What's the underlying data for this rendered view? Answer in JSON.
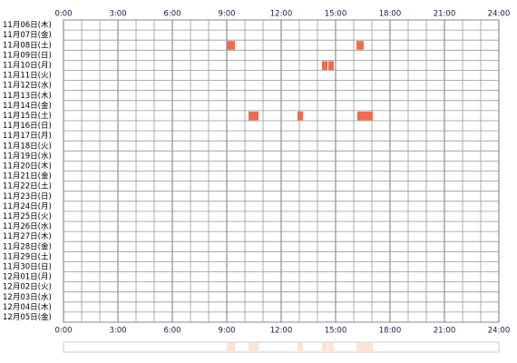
{
  "chart_data": {
    "type": "timeline",
    "categories": [
      "11月06日(木)",
      "11月07日(金)",
      "11月08日(土)",
      "11月09日(日)",
      "11月10日(月)",
      "11月11日(火)",
      "11月12日(水)",
      "11月13日(木)",
      "11月14日(金)",
      "11月15日(土)",
      "11月16日(日)",
      "11月17日(月)",
      "11月18日(火)",
      "11月19日(水)",
      "11月20日(木)",
      "11月21日(金)",
      "11月22日(土)",
      "11月23日(日)",
      "11月24日(月)",
      "11月25日(火)",
      "11月26日(水)",
      "11月27日(木)",
      "11月28日(金)",
      "11月29日(土)",
      "11月30日(日)",
      "12月01日(月)",
      "12月02日(火)",
      "12月03日(水)",
      "12月04日(木)",
      "12月05日(金)"
    ],
    "xlim": [
      0,
      24
    ],
    "xticks": [
      {
        "value": 0,
        "label": "0:00"
      },
      {
        "value": 3,
        "label": "3:00"
      },
      {
        "value": 6,
        "label": "6:00"
      },
      {
        "value": 9,
        "label": "9:00"
      },
      {
        "value": 12,
        "label": "12:00"
      },
      {
        "value": 15,
        "label": "15:00"
      },
      {
        "value": 18,
        "label": "18:00"
      },
      {
        "value": 21,
        "label": "21:00"
      },
      {
        "value": 24,
        "label": "24:00"
      }
    ],
    "grid": true,
    "color": "#f26b4b",
    "summary_color": "#fde3d6",
    "events": [
      {
        "day": 2,
        "start": 9.0,
        "end": 9.45
      },
      {
        "day": 2,
        "start": 16.15,
        "end": 16.55
      },
      {
        "day": 4,
        "start": 14.25,
        "end": 14.55
      },
      {
        "day": 4,
        "start": 14.6,
        "end": 14.9
      },
      {
        "day": 9,
        "start": 10.2,
        "end": 10.75
      },
      {
        "day": 9,
        "start": 12.9,
        "end": 13.2
      },
      {
        "day": 9,
        "start": 16.2,
        "end": 17.05
      }
    ]
  }
}
